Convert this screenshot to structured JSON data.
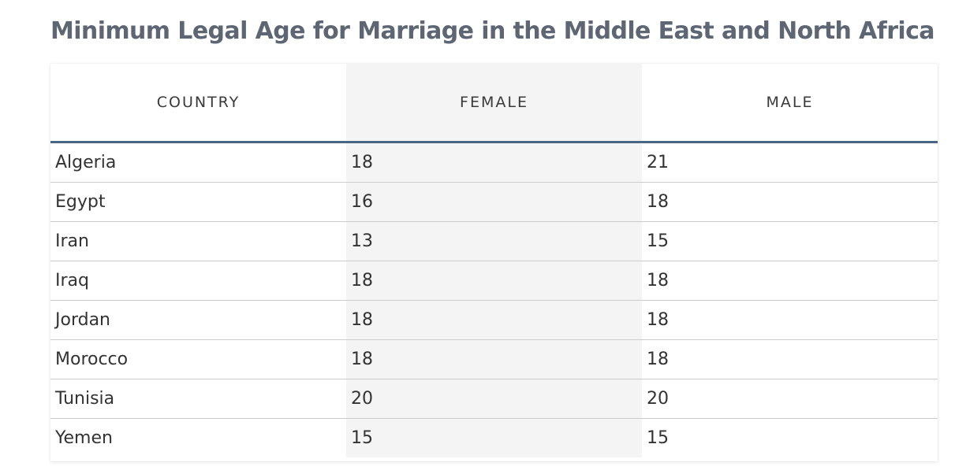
{
  "title": "Minimum Legal Age for Marriage in the Middle East and North Africa",
  "chart_data": {
    "type": "table",
    "title": "Minimum Legal Age for Marriage in the Middle East and North Africa",
    "columns": [
      "COUNTRY",
      "FEMALE",
      "MALE"
    ],
    "rows": [
      {
        "country": "Algeria",
        "female": "18",
        "male": "21"
      },
      {
        "country": "Egypt",
        "female": "16",
        "male": "18"
      },
      {
        "country": "Iran",
        "female": "13",
        "male": "15"
      },
      {
        "country": "Iraq",
        "female": "18",
        "male": "18"
      },
      {
        "country": "Jordan",
        "female": "18",
        "male": "18"
      },
      {
        "country": "Morocco",
        "female": "18",
        "male": "18"
      },
      {
        "country": "Tunisia",
        "female": "20",
        "male": "20"
      },
      {
        "country": "Yemen",
        "female": "15",
        "male": "15"
      }
    ]
  },
  "colors": {
    "title": "#5e6673",
    "header_rule": "#4a6684",
    "shaded_column": "#f4f4f4",
    "row_divider": "#cccccc"
  }
}
